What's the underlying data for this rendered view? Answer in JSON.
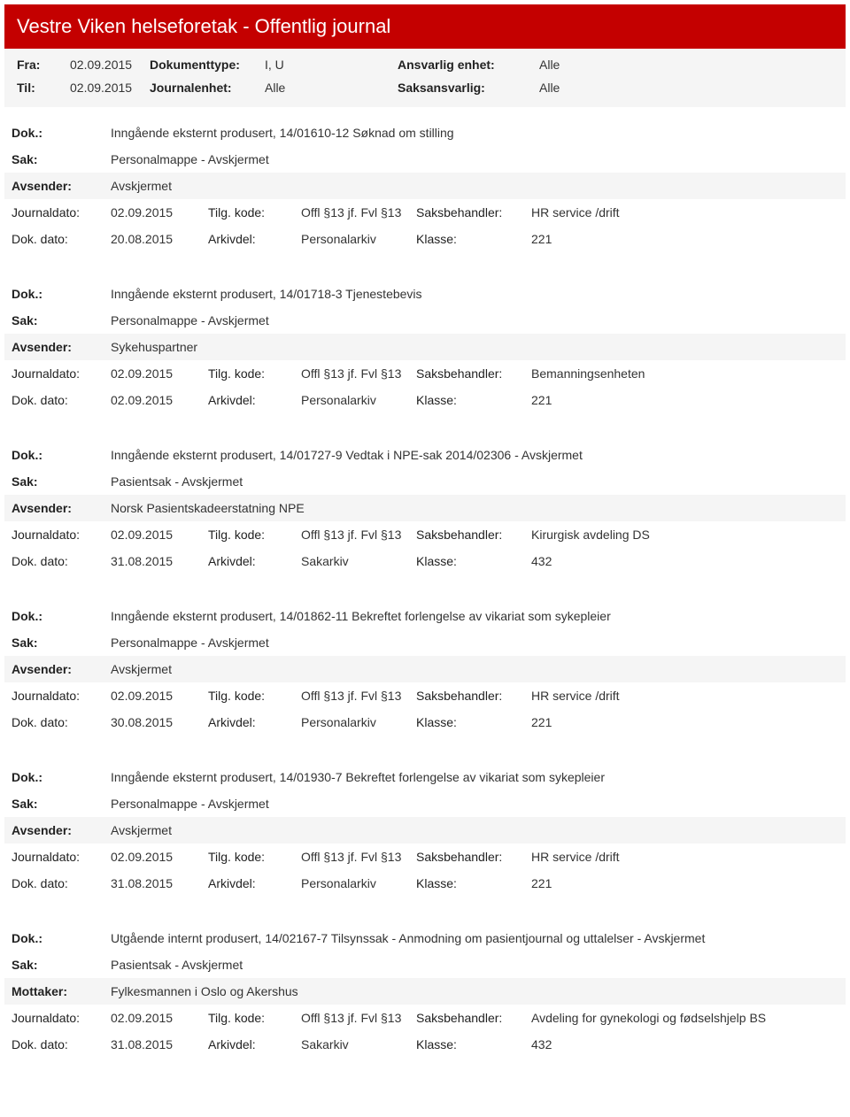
{
  "header": {
    "title": "Vestre Viken helseforetak - Offentlig journal"
  },
  "meta": {
    "fra_label": "Fra:",
    "fra_value": "02.09.2015",
    "til_label": "Til:",
    "til_value": "02.09.2015",
    "dokumenttype_label": "Dokumenttype:",
    "dokumenttype_value": "I, U",
    "journalenhet_label": "Journalenhet:",
    "journalenhet_value": "Alle",
    "ansvarlig_label": "Ansvarlig enhet:",
    "ansvarlig_value": "Alle",
    "saksansvarlig_label": "Saksansvarlig:",
    "saksansvarlig_value": "Alle"
  },
  "labels": {
    "dok": "Dok.:",
    "sak": "Sak:",
    "avsender": "Avsender:",
    "mottaker": "Mottaker:",
    "journaldato": "Journaldato:",
    "dokdato": "Dok. dato:",
    "tilgkode": "Tilg. kode:",
    "arkivdel": "Arkivdel:",
    "saksbehandler": "Saksbehandler:",
    "klasse": "Klasse:"
  },
  "entries": [
    {
      "dok": "Inngående eksternt produsert, 14/01610-12 Søknad om stilling",
      "sak": "Personalmappe - Avskjermet",
      "party_label": "Avsender:",
      "party_value": "Avskjermet",
      "journaldato": "02.09.2015",
      "tilgkode": "Offl §13 jf. Fvl §13",
      "saksbehandler": "HR service /drift",
      "dokdato": "20.08.2015",
      "arkivdel": "Personalarkiv",
      "klasse": "221"
    },
    {
      "dok": "Inngående eksternt produsert, 14/01718-3 Tjenestebevis",
      "sak": "Personalmappe - Avskjermet",
      "party_label": "Avsender:",
      "party_value": "Sykehuspartner",
      "journaldato": "02.09.2015",
      "tilgkode": "Offl §13 jf. Fvl §13",
      "saksbehandler": "Bemanningsenheten",
      "dokdato": "02.09.2015",
      "arkivdel": "Personalarkiv",
      "klasse": "221"
    },
    {
      "dok": "Inngående eksternt produsert, 14/01727-9 Vedtak i NPE-sak 2014/02306 - Avskjermet",
      "sak": "Pasientsak - Avskjermet",
      "party_label": "Avsender:",
      "party_value": "Norsk Pasientskadeerstatning NPE",
      "journaldato": "02.09.2015",
      "tilgkode": "Offl §13 jf. Fvl §13",
      "saksbehandler": "Kirurgisk avdeling DS",
      "dokdato": "31.08.2015",
      "arkivdel": "Sakarkiv",
      "klasse": "432"
    },
    {
      "dok": "Inngående eksternt produsert, 14/01862-11 Bekreftet forlengelse av vikariat som sykepleier",
      "sak": "Personalmappe - Avskjermet",
      "party_label": "Avsender:",
      "party_value": "Avskjermet",
      "journaldato": "02.09.2015",
      "tilgkode": "Offl §13 jf. Fvl §13",
      "saksbehandler": "HR service /drift",
      "dokdato": "30.08.2015",
      "arkivdel": "Personalarkiv",
      "klasse": "221"
    },
    {
      "dok": "Inngående eksternt produsert, 14/01930-7 Bekreftet forlengelse av vikariat som sykepleier",
      "sak": "Personalmappe - Avskjermet",
      "party_label": "Avsender:",
      "party_value": "Avskjermet",
      "journaldato": "02.09.2015",
      "tilgkode": "Offl §13 jf. Fvl §13",
      "saksbehandler": "HR service /drift",
      "dokdato": "31.08.2015",
      "arkivdel": "Personalarkiv",
      "klasse": "221"
    },
    {
      "dok": "Utgående internt produsert, 14/02167-7 Tilsynssak - Anmodning om pasientjournal og uttalelser - Avskjermet",
      "sak": "Pasientsak - Avskjermet",
      "party_label": "Mottaker:",
      "party_value": "Fylkesmannen i Oslo og Akershus",
      "journaldato": "02.09.2015",
      "tilgkode": "Offl §13 jf. Fvl §13",
      "saksbehandler": "Avdeling for gynekologi og fødselshjelp BS",
      "dokdato": "31.08.2015",
      "arkivdel": "Sakarkiv",
      "klasse": "432"
    }
  ]
}
